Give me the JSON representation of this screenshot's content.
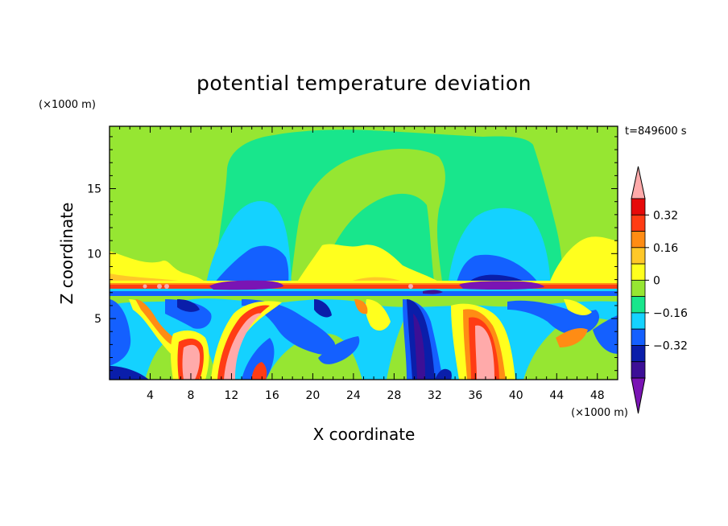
{
  "chart_data": {
    "type": "heatmap",
    "title": "potential temperature deviation",
    "time_label": "t=849600 s",
    "xlabel": "X coordinate",
    "ylabel": "Z coordinate",
    "x_unit": "(×1000 m)",
    "y_unit": "(×1000 m)",
    "xlim": [
      0,
      50
    ],
    "ylim": [
      0.3,
      19.8
    ],
    "x_ticks": [
      4,
      8,
      12,
      16,
      20,
      24,
      28,
      32,
      36,
      40,
      44,
      48
    ],
    "y_ticks": [
      5,
      10,
      15
    ],
    "colorbar": {
      "levels": [
        -0.48,
        -0.4,
        -0.32,
        -0.24,
        -0.16,
        -0.08,
        0,
        0.08,
        0.16,
        0.24,
        0.32,
        0.4
      ],
      "tick_labels": [
        "0.32",
        "0.16",
        "0",
        "−0.16",
        "−0.32"
      ],
      "tick_values": [
        0.32,
        0.16,
        0,
        -0.16,
        -0.32
      ],
      "colors": [
        "#7a14b4",
        "#3c0f96",
        "#0a1eaa",
        "#1460ff",
        "#14d2ff",
        "#18e68c",
        "#96e632",
        "#ffff1e",
        "#ffc828",
        "#ff8c14",
        "#ff3c14",
        "#e60a0a",
        "#ffaaaa"
      ],
      "extend": "both"
    },
    "fields": {
      "upper_layer": "mostly 0 to 0.08 (green) above 8 km with a broad near-zero (spring green) plume between x=9 and x=42, cyan/blue negative domes near x=12-18 and x=34-42",
      "inversion_z": 7.5,
      "lower_layer": "alternating vertical bands of positive (red/pink near x=9, 14, 37) and negative (dark blue near x=28-31, 10-13) anomalies below 7.5 km"
    }
  }
}
